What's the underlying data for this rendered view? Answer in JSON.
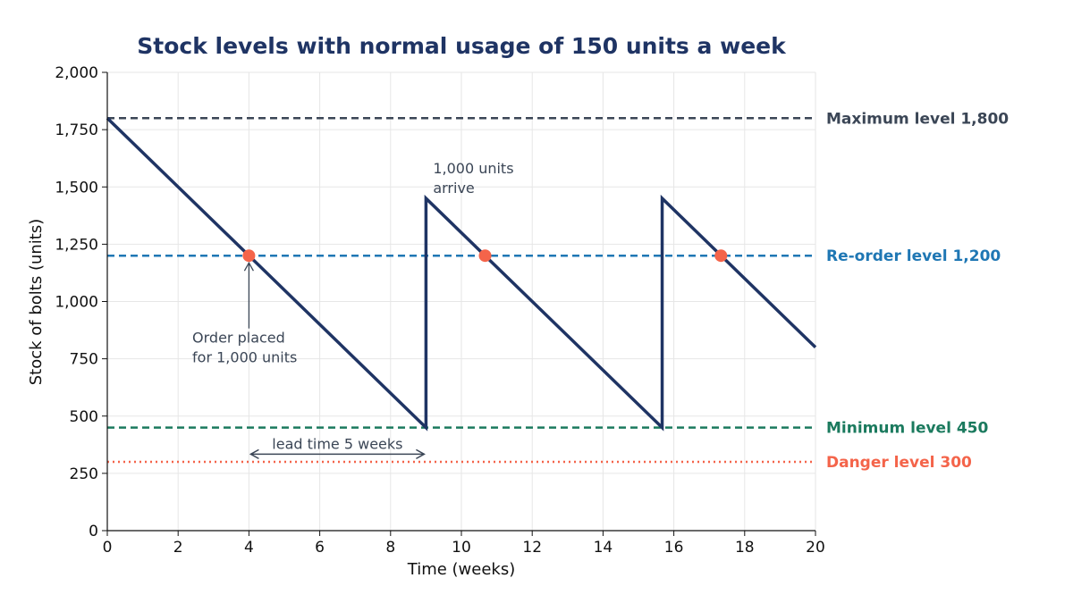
{
  "chart_data": {
    "type": "line",
    "title": "Stock levels with normal usage of 150 units a week",
    "xlabel": "Time (weeks)",
    "ylabel": "Stock of bolts (units)",
    "xlim": [
      0,
      20
    ],
    "ylim": [
      0,
      2000
    ],
    "x_ticks": [
      0,
      2,
      4,
      6,
      8,
      10,
      12,
      14,
      16,
      18,
      20
    ],
    "y_ticks": [
      0,
      250,
      500,
      750,
      1000,
      1250,
      1500,
      1750,
      2000
    ],
    "y_tick_labels": [
      "0",
      "250",
      "500",
      "750",
      "1,000",
      "1,250",
      "1,500",
      "1,750",
      "2,000"
    ],
    "grid": true,
    "series": [
      {
        "x": [
          0,
          9,
          9,
          15.67,
          15.67,
          20
        ],
        "y": [
          1800,
          450,
          1450,
          450,
          1450,
          800
        ],
        "color": "#1f3464"
      }
    ],
    "reference_lines": [
      {
        "label": "Maximum level 1,800",
        "value": 1800,
        "color": "#3b4656",
        "style": "dashed"
      },
      {
        "label": "Re-order level 1,200",
        "value": 1200,
        "color": "#1f77b4",
        "style": "dashed"
      },
      {
        "label": "Minimum level 450",
        "value": 450,
        "color": "#1b7a5e",
        "style": "dashed"
      },
      {
        "label": "Danger level 300",
        "value": 300,
        "color": "#f4644a",
        "style": "dotted"
      }
    ],
    "reorder_points": {
      "x": [
        4,
        10.67,
        17.33
      ],
      "y": [
        1200,
        1200,
        1200
      ],
      "color": "#f4644a"
    },
    "annotations": {
      "order_placed": {
        "line1": "Order placed",
        "line2": "for 1,000 units",
        "point": [
          4,
          1200
        ],
        "text_at": [
          2.4,
          820
        ]
      },
      "units_arrive": {
        "line1": "1,000 units",
        "line2": "arrive",
        "text_at": [
          9.2,
          1560
        ]
      },
      "lead_time": {
        "label": "lead time 5 weeks",
        "x_start": 4,
        "x_end": 9,
        "y": 365
      }
    },
    "colors": {
      "title": "#1f3464",
      "axis": "#111111",
      "grid": "#e6e6e6",
      "annotation": "#3b4656"
    }
  }
}
